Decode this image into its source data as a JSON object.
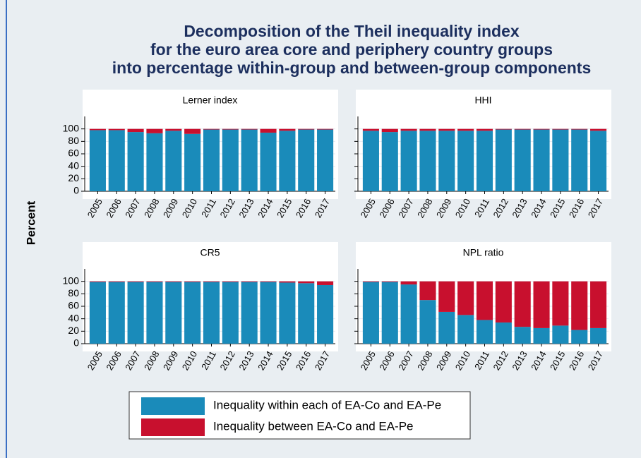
{
  "title": [
    "Decomposition of the Theil inequality index",
    "for the euro area core and periphery country groups",
    "into percentage within-group and between-group components"
  ],
  "y_label": "Percent",
  "chart_data": [
    {
      "type": "bar",
      "stacked": true,
      "title": "Lerner index",
      "categories": [
        "2005",
        "2006",
        "2007",
        "2008",
        "2009",
        "2010",
        "2011",
        "2012",
        "2013",
        "2014",
        "2015",
        "2016",
        "2017"
      ],
      "series": [
        {
          "name": "Inequality within each of EA-Co and EA-Pe",
          "color": "#1a8bba",
          "values": [
            98,
            98,
            95,
            93,
            97,
            92,
            99,
            99,
            99,
            94,
            97,
            99,
            99
          ]
        },
        {
          "name": "Inequality between EA-Co and EA-Pe",
          "color": "#c8102e",
          "values": [
            2,
            2,
            5,
            7,
            3,
            8,
            1,
            1,
            1,
            6,
            3,
            1,
            1
          ]
        }
      ],
      "ylim": [
        0,
        120
      ],
      "yticks": [
        0,
        20,
        40,
        60,
        80,
        100
      ],
      "grid": true
    },
    {
      "type": "bar",
      "stacked": true,
      "title": "HHI",
      "categories": [
        "2005",
        "2006",
        "2007",
        "2008",
        "2009",
        "2010",
        "2011",
        "2012",
        "2013",
        "2014",
        "2015",
        "2016",
        "2017"
      ],
      "series": [
        {
          "name": "Inequality within each of EA-Co and EA-Pe",
          "color": "#1a8bba",
          "values": [
            97,
            95,
            97,
            97,
            97,
            97,
            97,
            99,
            99,
            99,
            99,
            99,
            97
          ]
        },
        {
          "name": "Inequality between EA-Co and EA-Pe",
          "color": "#c8102e",
          "values": [
            3,
            5,
            3,
            3,
            3,
            3,
            3,
            1,
            1,
            1,
            1,
            1,
            3
          ]
        }
      ],
      "ylim": [
        0,
        120
      ],
      "yticks": [
        0,
        20,
        40,
        60,
        80,
        100
      ],
      "grid": true
    },
    {
      "type": "bar",
      "stacked": true,
      "title": "CR5",
      "categories": [
        "2005",
        "2006",
        "2007",
        "2008",
        "2009",
        "2010",
        "2011",
        "2012",
        "2013",
        "2014",
        "2015",
        "2016",
        "2017"
      ],
      "series": [
        {
          "name": "Inequality within each of EA-Co and EA-Pe",
          "color": "#1a8bba",
          "values": [
            99,
            99,
            99,
            99,
            99,
            99,
            99,
            99,
            99,
            99,
            98,
            97,
            94
          ]
        },
        {
          "name": "Inequality between EA-Co and EA-Pe",
          "color": "#c8102e",
          "values": [
            1,
            1,
            1,
            1,
            1,
            1,
            1,
            1,
            1,
            1,
            2,
            3,
            6
          ]
        }
      ],
      "ylim": [
        0,
        120
      ],
      "yticks": [
        0,
        20,
        40,
        60,
        80,
        100
      ],
      "grid": true
    },
    {
      "type": "bar",
      "stacked": true,
      "title": "NPL ratio",
      "categories": [
        "2005",
        "2006",
        "2007",
        "2008",
        "2009",
        "2010",
        "2011",
        "2012",
        "2013",
        "2014",
        "2015",
        "2016",
        "2017"
      ],
      "series": [
        {
          "name": "Inequality within each of EA-Co and EA-Pe",
          "color": "#1a8bba",
          "values": [
            99,
            99,
            95,
            70,
            51,
            46,
            38,
            34,
            27,
            25,
            29,
            22,
            25
          ]
        },
        {
          "name": "Inequality between EA-Co and EA-Pe",
          "color": "#c8102e",
          "values": [
            1,
            1,
            5,
            30,
            49,
            54,
            62,
            66,
            73,
            75,
            71,
            78,
            75
          ]
        }
      ],
      "ylim": [
        0,
        120
      ],
      "yticks": [
        0,
        20,
        40,
        60,
        80,
        100
      ],
      "grid": true
    }
  ]
}
